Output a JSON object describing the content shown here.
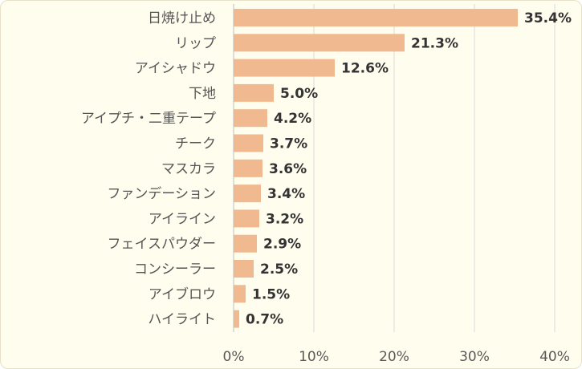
{
  "chart_data": {
    "type": "bar",
    "orientation": "horizontal",
    "categories": [
      "日焼け止め",
      "リップ",
      "アイシャドウ",
      "下地",
      "アイプチ・二重テープ",
      "チーク",
      "マスカラ",
      "ファンデーション",
      "アイライン",
      "フェイスパウダー",
      "コンシーラー",
      "アイブロウ",
      "ハイライト"
    ],
    "values": [
      35.4,
      21.3,
      12.6,
      5.0,
      4.2,
      3.7,
      3.6,
      3.4,
      3.2,
      2.9,
      2.5,
      1.5,
      0.7
    ],
    "data_labels": [
      "35.4%",
      "21.3%",
      "12.6%",
      "5.0%",
      "4.2%",
      "3.7%",
      "3.6%",
      "3.4%",
      "3.2%",
      "2.9%",
      "2.5%",
      "1.5%",
      "0.7%"
    ],
    "x_ticks": [
      "0%",
      "10%",
      "20%",
      "30%",
      "40%"
    ],
    "xlim": [
      0,
      40
    ],
    "grid": true,
    "bar_color": "#f0b990",
    "background_color": "#fffdee",
    "title": "",
    "xlabel": "",
    "ylabel": ""
  }
}
